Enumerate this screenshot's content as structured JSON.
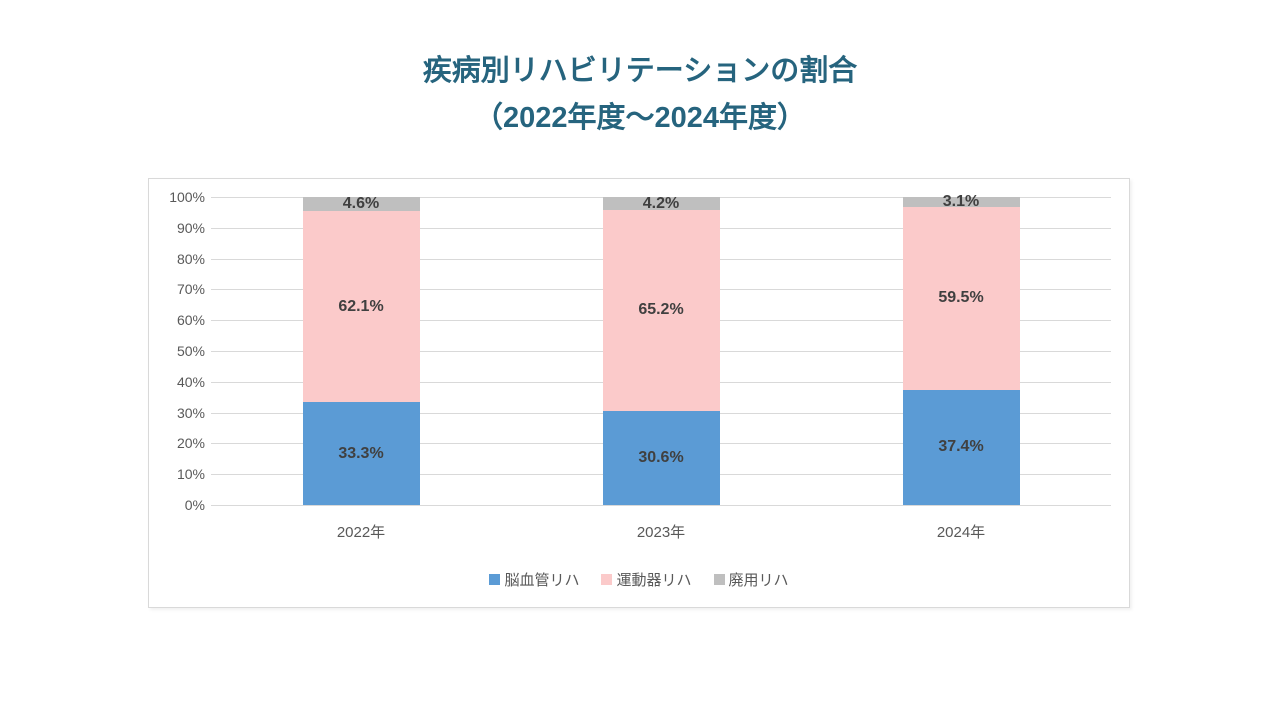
{
  "title": {
    "line1": "疾病別リハビリテーションの割合",
    "line2": "（2022年度～2024年度）"
  },
  "colors": {
    "title_text": "#26647E",
    "series_blue": "#5B9BD5",
    "series_pink": "#FBCACA",
    "series_gray": "#BFBFBF",
    "axis_text": "#595959",
    "data_label_text": "#404040",
    "gridline": "#D9D9D9",
    "chart_border": "#D9D9D9"
  },
  "chart_data": {
    "type": "bar",
    "stacked": true,
    "percent_stacked": true,
    "title": "疾病別リハビリテーションの割合（2022年度～2024年度）",
    "categories": [
      "2022年",
      "2023年",
      "2024年"
    ],
    "series": [
      {
        "name": "脳血管リハ",
        "color": "#5B9BD5",
        "values": [
          33.3,
          30.6,
          37.4
        ],
        "labels": [
          "33.3%",
          "30.6%",
          "37.4%"
        ]
      },
      {
        "name": "運動器リハ",
        "color": "#FBCACA",
        "values": [
          62.1,
          65.2,
          59.5
        ],
        "labels": [
          "62.1%",
          "65.2%",
          "59.5%"
        ]
      },
      {
        "name": "廃用リハ",
        "color": "#BFBFBF",
        "values": [
          4.6,
          4.2,
          3.1
        ],
        "labels": [
          "4.6%",
          "4.2%",
          "3.1%"
        ]
      }
    ],
    "xlabel": "",
    "ylabel": "",
    "ylim": [
      0,
      100
    ],
    "y_ticks": [
      "0%",
      "10%",
      "20%",
      "30%",
      "40%",
      "50%",
      "60%",
      "70%",
      "80%",
      "90%",
      "100%"
    ],
    "grid": true,
    "legend_position": "bottom"
  }
}
